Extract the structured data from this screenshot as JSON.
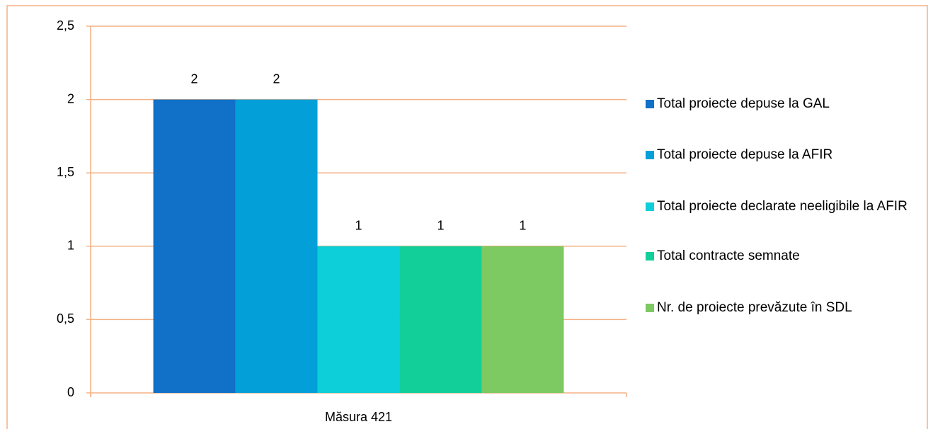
{
  "chart_data": {
    "type": "bar",
    "categories": [
      "Măsura 421"
    ],
    "series": [
      {
        "name": "Total proiecte depuse la GAL",
        "color": "#1170c8",
        "values": [
          2
        ]
      },
      {
        "name": "Total proiecte depuse la AFIR",
        "color": "#039fd9",
        "values": [
          2
        ]
      },
      {
        "name": "Total proiecte declarate neeligibile la AFIR",
        "color": "#0dcfd9",
        "values": [
          1
        ]
      },
      {
        "name": "Total contracte semnate",
        "color": "#12cf9a",
        "values": [
          1
        ]
      },
      {
        "name": "Nr. de proiecte prevăzute în SDL",
        "color": "#7dc962",
        "values": [
          1
        ]
      }
    ],
    "ylim": [
      0,
      2.5
    ],
    "yticks": [
      0,
      {
        "value": 0.5,
        "label": "0,5"
      },
      1,
      {
        "value": 1.5,
        "label": "1,5"
      },
      2,
      {
        "value": 2.5,
        "label": "2,5"
      }
    ],
    "grid": true,
    "legend": "right"
  }
}
